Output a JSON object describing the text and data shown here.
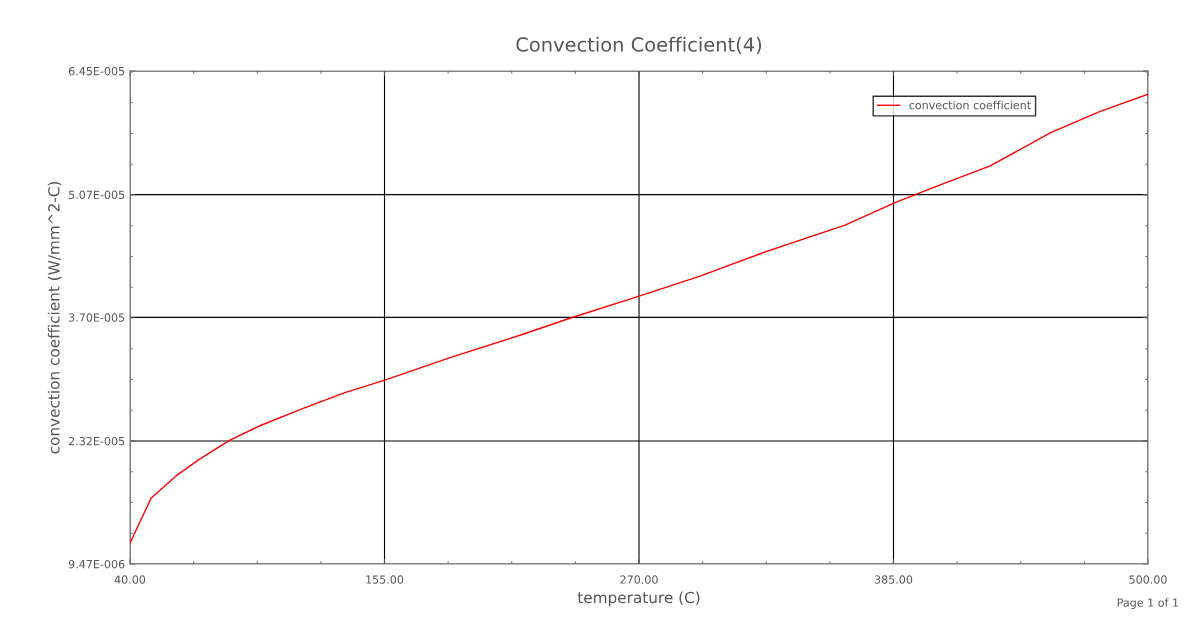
{
  "chart_data": {
    "type": "line",
    "title": "Convection Coefficient(4)",
    "xlabel": "temperature (C)",
    "ylabel": "convection coefficient (W/mm^2-C)",
    "annotations": [
      "Page 1 of 1"
    ],
    "x": [
      40,
      49.5,
      60.8,
      71.6,
      85.2,
      98.7,
      116.8,
      137.1,
      155.2,
      184.6,
      216.2,
      238.8,
      270.4,
      297.6,
      324.7,
      363.1,
      385.7,
      406.1,
      428.7,
      455.8,
      478.4,
      500
    ],
    "series": [
      {
        "name": "convection coefficient",
        "color": "#ff0000",
        "values": [
          1.18e-05,
          1.68e-05,
          1.93e-05,
          2.12e-05,
          2.33e-05,
          2.49e-05,
          2.67e-05,
          2.86e-05,
          3e-05,
          3.25e-05,
          3.5e-05,
          3.69e-05,
          3.94e-05,
          4.16e-05,
          4.41e-05,
          4.73e-05,
          4.98e-05,
          5.18e-05,
          5.39e-05,
          5.76e-05,
          6e-05,
          6.19e-05
        ]
      }
    ],
    "xlim": [
      40,
      500
    ],
    "xticks": [
      {
        "value": 40,
        "label": "40.00"
      },
      {
        "value": 155,
        "label": "155.00"
      },
      {
        "value": 270,
        "label": "270.00"
      },
      {
        "value": 385,
        "label": "385.00"
      },
      {
        "value": 500,
        "label": "500.00"
      }
    ],
    "ylim": [
      9.47e-06,
      6.45e-05
    ],
    "yticks": [
      {
        "value": 9.47e-06,
        "label": "9.47E-006"
      },
      {
        "value": 2.32e-05,
        "label": "2.32E-005"
      },
      {
        "value": 3.7e-05,
        "label": "3.70E-005"
      },
      {
        "value": 5.07e-05,
        "label": "5.07E-005"
      },
      {
        "value": 6.45e-05,
        "label": "6.45E-005"
      }
    ],
    "grid": true,
    "legend": "top right",
    "marker": "none",
    "line_style": "solid"
  }
}
